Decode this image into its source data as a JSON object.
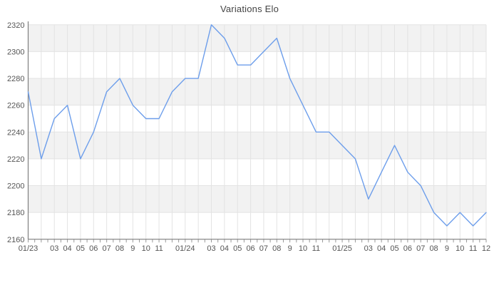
{
  "header": {
    "title": "Variations Elo"
  },
  "chart_data": {
    "type": "line",
    "title": "Variations Elo",
    "series_name": "Elo",
    "x_labels": [
      "01/23",
      "",
      "03",
      "04",
      "05",
      "06",
      "07",
      "08",
      "9",
      "10",
      "11",
      "",
      "01/24",
      "",
      "03",
      "04",
      "05",
      "06",
      "07",
      "08",
      "9",
      "10",
      "11",
      "",
      "01/25",
      "",
      "03",
      "04",
      "05",
      "06",
      "07",
      "08",
      "9",
      "10",
      "11",
      "12"
    ],
    "values": [
      2270,
      2220,
      2250,
      2260,
      2220,
      2240,
      2270,
      2280,
      2260,
      2250,
      2250,
      2270,
      2280,
      2280,
      2320,
      2310,
      2290,
      2290,
      2300,
      2310,
      2280,
      2260,
      2240,
      2240,
      2230,
      2220,
      2190,
      2210,
      2230,
      2210,
      2200,
      2180,
      2170,
      2180,
      2170,
      2180
    ],
    "y_ticks": [
      2160,
      2180,
      2200,
      2220,
      2240,
      2260,
      2280,
      2300,
      2320
    ],
    "ylim": [
      2160,
      2320
    ],
    "grid": true,
    "legend_position": "none",
    "band_fill": "alternating-horizontal",
    "colors": {
      "line": "#6d9eeb",
      "band": "#f2f2f2",
      "grid": "#e3e3e3",
      "axis": "#808080",
      "tick": "#999999",
      "tick_label": "#555555",
      "title": "#444444",
      "background": "#ffffff"
    }
  }
}
